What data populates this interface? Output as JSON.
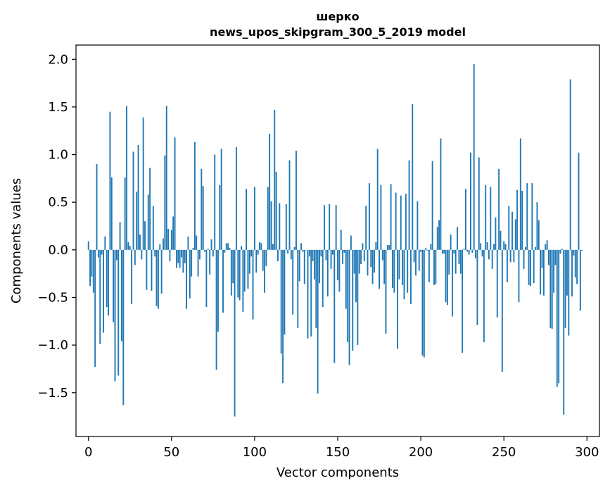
{
  "chart_data": {
    "type": "bar",
    "title_lines": [
      "шерко",
      "news_upos_skipgram_300_5_2019 model"
    ],
    "xlabel": "Vector components",
    "ylabel": "Components values",
    "xlim": [
      -7.5,
      307.5
    ],
    "ylim": [
      -1.96,
      2.15
    ],
    "xticks": [
      0,
      50,
      100,
      150,
      200,
      250,
      300
    ],
    "yticks": [
      -1.5,
      -1.0,
      -0.5,
      0.0,
      0.5,
      1.0,
      1.5,
      2.0
    ],
    "ytick_labels": [
      "−1.5",
      "−1.0",
      "−0.5",
      "0.0",
      "0.5",
      "1.0",
      "1.5",
      "2.0"
    ],
    "bar_color": "#1f77b4",
    "series": [
      {
        "name": "components",
        "x_start": 0,
        "values": [
          0.09,
          -0.38,
          -0.28,
          -0.45,
          -1.23,
          0.9,
          -0.08,
          -0.99,
          -0.05,
          -0.87,
          0.14,
          -0.6,
          -0.69,
          1.45,
          0.76,
          -0.76,
          -1.38,
          -0.11,
          -1.32,
          0.29,
          -0.96,
          -1.63,
          0.76,
          1.51,
          0.08,
          0.04,
          -0.57,
          1.03,
          -0.16,
          0.61,
          1.1,
          0.16,
          -0.1,
          1.39,
          0.3,
          -0.42,
          0.58,
          0.86,
          -0.43,
          0.46,
          -0.07,
          -0.59,
          -0.62,
          0.06,
          -0.46,
          0.12,
          0.99,
          1.51,
          0.22,
          -0.12,
          0.21,
          0.35,
          1.18,
          -0.19,
          -0.14,
          -0.19,
          -0.08,
          -0.24,
          -0.14,
          -0.62,
          0.14,
          -0.51,
          -0.28,
          0.02,
          1.13,
          0.15,
          -0.28,
          -0.1,
          0.85,
          0.67,
          -0.02,
          -0.6,
          0.01,
          -0.26,
          0.11,
          -0.07,
          1.0,
          -1.26,
          -0.86,
          0.68,
          1.06,
          -0.66,
          -0.03,
          0.07,
          0.07,
          0.02,
          -0.48,
          -0.35,
          -1.75,
          1.08,
          -0.5,
          -0.53,
          0.04,
          -0.65,
          -0.44,
          0.64,
          -0.41,
          -0.25,
          -0.07,
          -0.73,
          0.66,
          -0.24,
          -0.05,
          0.08,
          0.07,
          -0.22,
          -0.45,
          -0.17,
          0.66,
          1.22,
          0.51,
          0.06,
          1.47,
          0.82,
          -0.12,
          0.49,
          -1.09,
          -1.4,
          -0.89,
          0.48,
          -0.04,
          0.94,
          -0.1,
          -0.68,
          0.03,
          1.04,
          -0.82,
          -0.33,
          0.07,
          -0.02,
          -0.36,
          0.0,
          -0.93,
          -0.07,
          -0.91,
          -0.12,
          -0.31,
          -0.82,
          -1.51,
          -0.35,
          -0.07,
          -0.6,
          0.47,
          -0.11,
          -0.49,
          0.48,
          -0.2,
          -0.05,
          -1.19,
          0.47,
          -0.32,
          -0.44,
          0.21,
          -0.15,
          -0.03,
          -0.62,
          -0.97,
          -1.21,
          0.15,
          -1.06,
          -0.25,
          -0.55,
          -1.0,
          -0.25,
          -0.15,
          0.07,
          -0.12,
          0.46,
          -0.27,
          0.7,
          -0.18,
          -0.36,
          -0.24,
          0.08,
          1.06,
          -0.41,
          0.68,
          -0.11,
          -0.36,
          -0.88,
          0.05,
          0.05,
          0.69,
          -0.4,
          -0.45,
          0.6,
          -1.04,
          -0.31,
          0.57,
          -0.37,
          -0.52,
          0.59,
          -0.45,
          0.94,
          -0.57,
          1.53,
          -0.13,
          -0.27,
          0.51,
          -0.22,
          -0.02,
          -1.11,
          -1.13,
          0.02,
          -0.01,
          -0.34,
          0.06,
          0.93,
          -0.37,
          -0.36,
          0.24,
          0.31,
          1.17,
          -0.04,
          -0.04,
          -0.55,
          -0.58,
          -0.26,
          0.16,
          -0.7,
          -0.04,
          -0.25,
          0.24,
          -0.15,
          -0.25,
          -1.08,
          0.01,
          0.64,
          -0.02,
          -0.05,
          1.02,
          -0.03,
          1.95,
          -0.09,
          -0.79,
          0.97,
          0.07,
          -0.07,
          -0.97,
          0.68,
          0.08,
          -0.1,
          0.66,
          -0.2,
          0.06,
          0.34,
          -0.71,
          0.85,
          0.2,
          -1.28,
          0.09,
          0.06,
          -0.34,
          0.46,
          -0.13,
          0.4,
          -0.13,
          0.32,
          0.63,
          -0.55,
          1.17,
          0.62,
          -0.2,
          0.03,
          0.7,
          -0.37,
          -0.38,
          0.7,
          -0.35,
          0.03,
          0.5,
          0.31,
          -0.47,
          -0.19,
          -0.48,
          0.06,
          0.1,
          -0.16,
          -0.82,
          -0.83,
          -0.45,
          -0.16,
          -1.44,
          -1.4,
          -0.04,
          0.01,
          -1.73,
          -0.82,
          -0.48,
          -0.9,
          1.79,
          -0.49,
          -0.06,
          -0.29,
          -0.36,
          1.02,
          -0.64,
          -0.01
        ]
      }
    ]
  }
}
